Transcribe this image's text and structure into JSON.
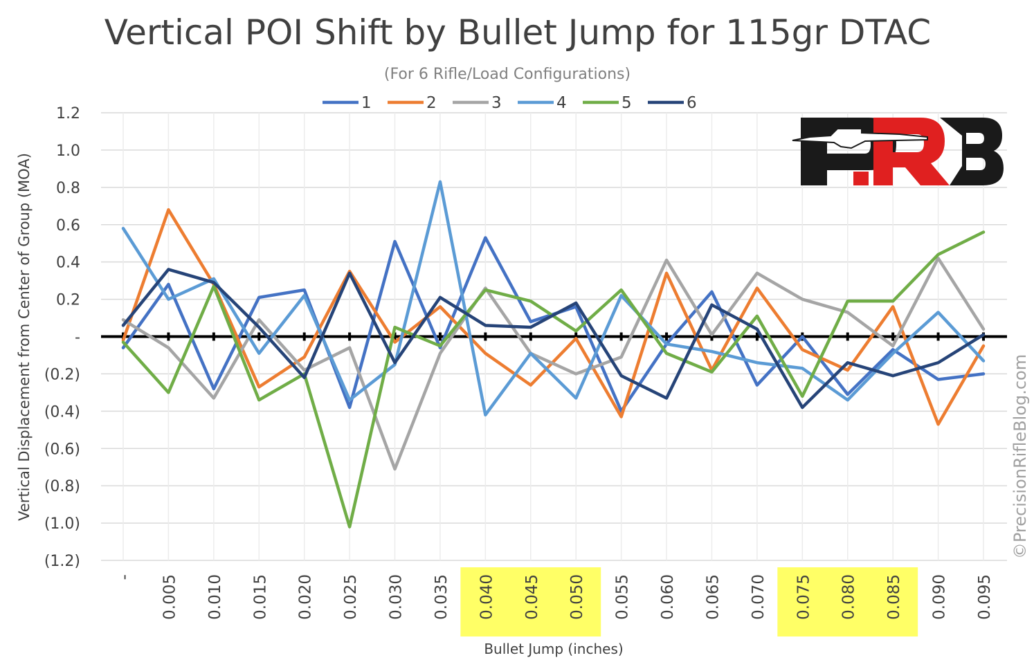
{
  "chart_data": {
    "type": "line",
    "title": "Vertical POI Shift by Bullet Jump for 115gr DTAC",
    "subtitle": "(For 6 Rifle/Load Configurations)",
    "xlabel": "Bullet Jump (inches)",
    "ylabel": "Vertical Displacement from Center of Group (MOA)",
    "categories": [
      "-",
      "0.005",
      "0.010",
      "0.015",
      "0.020",
      "0.025",
      "0.030",
      "0.035",
      "0.040",
      "0.045",
      "0.050",
      "0.055",
      "0.060",
      "0.065",
      "0.070",
      "0.075",
      "0.080",
      "0.085",
      "0.090",
      "0.095"
    ],
    "highlighted_categories": [
      "0.040",
      "0.045",
      "0.050",
      "0.075",
      "0.080",
      "0.085"
    ],
    "highlight_color": "#FFFF66",
    "ylim": [
      -1.2,
      1.2
    ],
    "yticks": [
      1.2,
      1.0,
      0.8,
      0.6,
      0.4,
      0.2,
      0,
      -0.2,
      -0.4,
      -0.6,
      -0.8,
      -1.0,
      -1.2
    ],
    "ytick_labels": [
      "1.2",
      "1.0",
      "0.8",
      "0.6",
      "0.4",
      "0.2",
      "-",
      "(0.2)",
      "(0.4)",
      "(0.6)",
      "(0.8)",
      "(1.0)",
      "(1.2)"
    ],
    "grid": true,
    "legend_position": "top",
    "series": [
      {
        "name": "1",
        "color": "#4472C4",
        "values": [
          -0.06,
          0.28,
          -0.28,
          0.21,
          0.25,
          -0.38,
          0.51,
          -0.06,
          0.53,
          0.08,
          0.16,
          -0.4,
          -0.04,
          0.24,
          -0.26,
          0.0,
          -0.31,
          -0.07,
          -0.23,
          -0.2
        ]
      },
      {
        "name": "2",
        "color": "#ED7D31",
        "values": [
          -0.02,
          0.68,
          0.28,
          -0.27,
          -0.11,
          0.35,
          -0.03,
          0.16,
          -0.09,
          -0.26,
          -0.01,
          -0.43,
          0.34,
          -0.18,
          0.26,
          -0.07,
          -0.18,
          0.16,
          -0.47,
          -0.05
        ]
      },
      {
        "name": "3",
        "color": "#A5A5A5",
        "values": [
          0.09,
          -0.06,
          -0.33,
          0.09,
          -0.18,
          -0.06,
          -0.71,
          -0.09,
          0.26,
          -0.09,
          -0.2,
          -0.11,
          0.41,
          0.01,
          0.34,
          0.2,
          0.13,
          -0.05,
          0.42,
          0.04
        ]
      },
      {
        "name": "4",
        "color": "#5B9BD5",
        "values": [
          0.58,
          0.2,
          0.31,
          -0.09,
          0.22,
          -0.34,
          -0.15,
          0.83,
          -0.42,
          -0.09,
          -0.33,
          0.22,
          -0.04,
          -0.08,
          -0.14,
          -0.17,
          -0.34,
          -0.09,
          0.13,
          -0.13
        ]
      },
      {
        "name": "5",
        "color": "#70AD47",
        "values": [
          -0.03,
          -0.3,
          0.27,
          -0.34,
          -0.2,
          -1.02,
          0.05,
          -0.05,
          0.25,
          0.19,
          0.03,
          0.25,
          -0.09,
          -0.19,
          0.11,
          -0.32,
          0.19,
          0.19,
          0.44,
          0.56
        ]
      },
      {
        "name": "6",
        "color": "#264478",
        "values": [
          0.06,
          0.36,
          0.29,
          0.05,
          -0.22,
          0.34,
          -0.14,
          0.21,
          0.06,
          0.05,
          0.18,
          -0.21,
          -0.33,
          0.17,
          0.04,
          -0.38,
          -0.14,
          -0.21,
          -0.14,
          0.01
        ]
      }
    ]
  },
  "watermark": "©PrecisionRifleBlog.com",
  "logo": {
    "text": "PRB",
    "colors": [
      "#1A1A1A",
      "#E02020"
    ]
  }
}
